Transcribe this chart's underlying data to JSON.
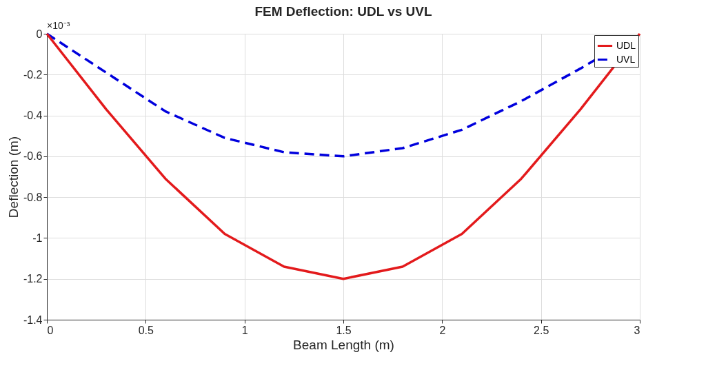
{
  "chart_data": {
    "type": "line",
    "title": "FEM Deflection: UDL vs UVL",
    "xlabel": "Beam Length (m)",
    "ylabel": "Deflection (m)",
    "annotations": [
      "×10⁻³"
    ],
    "x": [
      0,
      0.3,
      0.6,
      0.9,
      1.2,
      1.5,
      1.8,
      2.1,
      2.4,
      2.7,
      3
    ],
    "series": [
      {
        "name": "UDL",
        "color": "#e31a1c",
        "line_style": "solid",
        "values": [
          0,
          -0.37,
          -0.71,
          -0.98,
          -1.14,
          -1.2,
          -1.14,
          -0.98,
          -0.71,
          -0.37,
          0
        ]
      },
      {
        "name": "UVL",
        "color": "#0000dd",
        "line_style": "dashed",
        "values": [
          0,
          -0.19,
          -0.38,
          -0.51,
          -0.58,
          -0.6,
          -0.56,
          -0.47,
          -0.33,
          -0.17,
          0
        ]
      }
    ],
    "xlim": [
      0,
      3
    ],
    "xticks": [
      0,
      0.5,
      1,
      1.5,
      2,
      2.5,
      3
    ],
    "ylim": [
      -1.4,
      0
    ],
    "yticks": [
      -1.4,
      -1.2,
      -1,
      -0.8,
      -0.6,
      -0.4,
      -0.2,
      0
    ],
    "grid": true,
    "legend": "top right",
    "marker": "none"
  }
}
